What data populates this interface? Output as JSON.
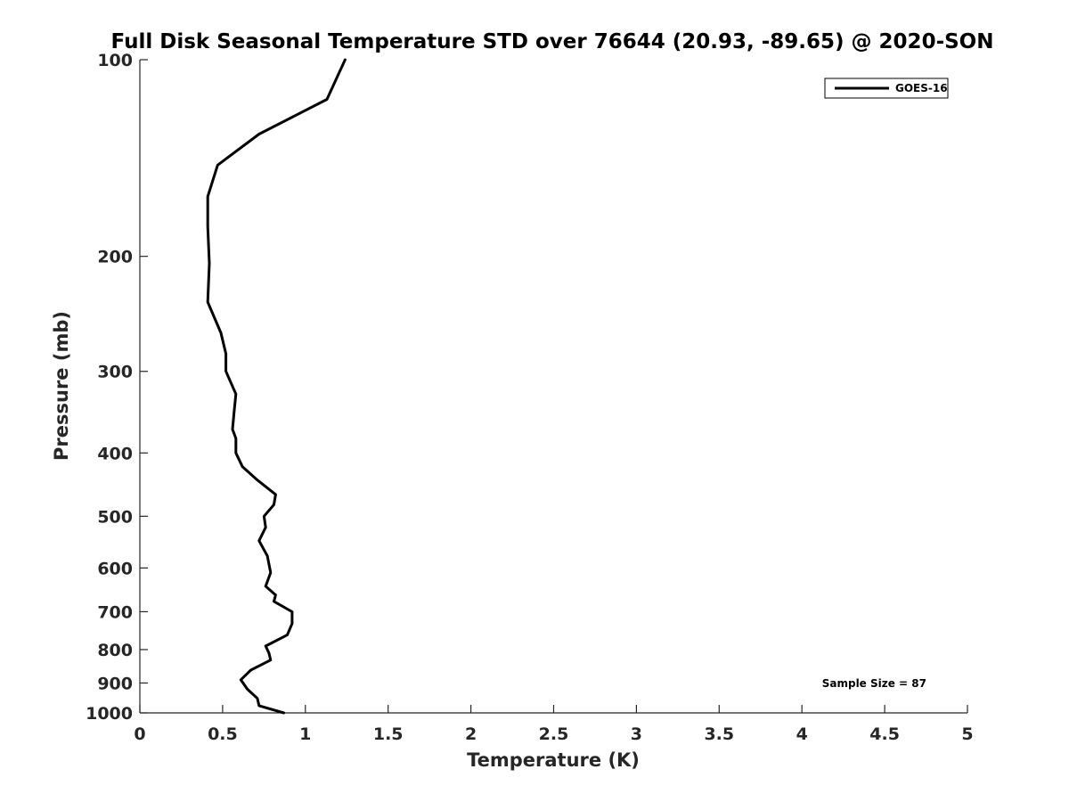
{
  "chart_data": {
    "type": "line",
    "title": "Full Disk Seasonal Temperature STD over 76644 (20.93, -89.65) @ 2020-SON",
    "xlabel": "Temperature (K)",
    "ylabel": "Pressure (mb)",
    "xlim": [
      0,
      5
    ],
    "ylim": [
      100,
      1000
    ],
    "yscale": "log",
    "y_reversed": true,
    "x_ticks": [
      "0",
      "0.5",
      "1",
      "1.5",
      "2",
      "2.5",
      "3",
      "3.5",
      "4",
      "4.5",
      "5"
    ],
    "x_tick_values": [
      0,
      0.5,
      1,
      1.5,
      2,
      2.5,
      3,
      3.5,
      4,
      4.5,
      5
    ],
    "y_ticks": [
      "100",
      "200",
      "300",
      "400",
      "500",
      "600",
      "700",
      "800",
      "900",
      "1000"
    ],
    "y_tick_values": [
      100,
      200,
      300,
      400,
      500,
      600,
      700,
      800,
      900,
      1000
    ],
    "grid": false,
    "legend_position": "top-right",
    "annotation": "Sample Size = 87",
    "series": [
      {
        "name": "GOES-16",
        "color": "#000000",
        "x": [
          1.24,
          1.13,
          0.72,
          0.47,
          0.41,
          0.41,
          0.42,
          0.41,
          0.49,
          0.52,
          0.52,
          0.58,
          0.57,
          0.56,
          0.58,
          0.58,
          0.62,
          0.71,
          0.82,
          0.81,
          0.75,
          0.76,
          0.72,
          0.77,
          0.79,
          0.76,
          0.82,
          0.81,
          0.92,
          0.92,
          0.89,
          0.76,
          0.78,
          0.79,
          0.67,
          0.61,
          0.65,
          0.71,
          0.72,
          0.87
        ],
        "y": [
          100,
          115,
          130,
          145,
          162,
          180,
          205,
          235,
          262,
          282,
          300,
          325,
          345,
          368,
          380,
          400,
          420,
          440,
          463,
          480,
          500,
          520,
          545,
          575,
          610,
          640,
          660,
          675,
          700,
          730,
          760,
          790,
          810,
          830,
          860,
          890,
          920,
          950,
          975,
          1000
        ]
      }
    ]
  }
}
